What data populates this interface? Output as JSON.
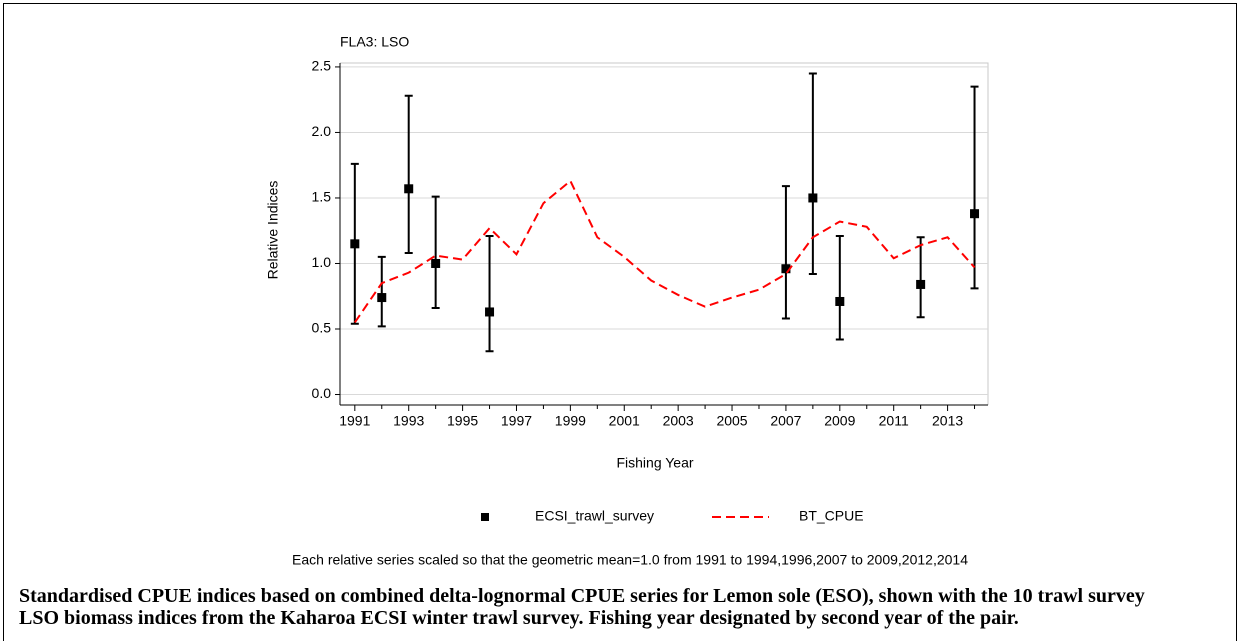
{
  "chart_data": {
    "type": "line",
    "title": "FLA3: LSO",
    "xlabel": "Fishing Year",
    "ylabel": "Relative Indices",
    "note": "Each relative series scaled so that the geometric mean=1.0 from 1991 to 1994,1996,2007 to 2009,2012,2014",
    "xlim": [
      1990.45,
      2014.5
    ],
    "ylim": [
      -0.08,
      2.53
    ],
    "xticks": [
      1991,
      1993,
      1995,
      1997,
      1999,
      2001,
      2003,
      2005,
      2007,
      2009,
      2011,
      2013
    ],
    "yticks": [
      {
        "value": 0,
        "label": "0.0"
      },
      0.5,
      {
        "value": 1,
        "label": "1.0"
      },
      1.5,
      {
        "value": 2,
        "label": "2.0"
      },
      2.5
    ],
    "grid": true,
    "series": [
      {
        "name": "ECSI_trawl_survey",
        "kind": "errorbar",
        "color": "#000000",
        "x": [
          1991,
          1992,
          1993,
          1994,
          1996,
          2007,
          2008,
          2009,
          2012,
          2014
        ],
        "values": [
          1.15,
          0.74,
          1.57,
          1.0,
          0.63,
          0.96,
          1.5,
          0.71,
          0.84,
          1.38
        ],
        "lower": [
          0.54,
          0.52,
          1.08,
          0.66,
          0.33,
          0.58,
          0.92,
          0.42,
          0.59,
          0.81
        ],
        "upper": [
          1.76,
          1.05,
          2.28,
          1.51,
          1.21,
          1.59,
          2.45,
          1.21,
          1.2,
          2.35
        ]
      },
      {
        "name": "BT_CPUE",
        "kind": "dashed-line",
        "color": "#ff0000",
        "x": [
          1991,
          1992,
          1993,
          1994,
          1995,
          1996,
          1997,
          1998,
          1999,
          2000,
          2001,
          2002,
          2003,
          2004,
          2005,
          2006,
          2007,
          2008,
          2009,
          2010,
          2011,
          2012,
          2013,
          2014
        ],
        "values": [
          0.55,
          0.85,
          0.93,
          1.06,
          1.03,
          1.27,
          1.07,
          1.46,
          1.63,
          1.2,
          1.05,
          0.87,
          0.76,
          0.67,
          0.74,
          0.8,
          0.92,
          1.2,
          1.32,
          1.28,
          1.04,
          1.14,
          1.2,
          0.97
        ]
      }
    ]
  },
  "caption": "Standardised CPUE indices based on combined delta-lognormal CPUE series for Lemon sole (ESO), shown with the 10 trawl survey LSO biomass indices from the Kaharoa ECSI winter trawl survey.  Fishing year designated by second year of the pair."
}
